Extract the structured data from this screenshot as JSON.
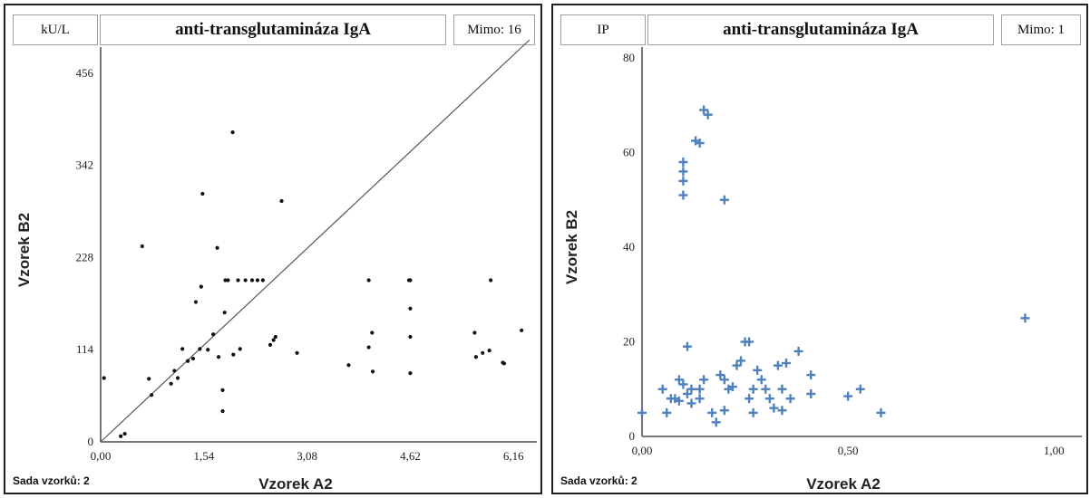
{
  "charts": [
    {
      "unit_label": "kU/L",
      "title": "anti-transglutamináza IgA",
      "out_of_range": "Mimo: 16",
      "footer": "Sada vzorků: 2",
      "xlabel": "Vzorek A2",
      "ylabel": "Vzorek B2"
    },
    {
      "unit_label": "IP",
      "title": "anti-transglutamináza IgA",
      "out_of_range": "Mimo: 1",
      "footer": "Sada vzorků: 2",
      "xlabel": "Vzorek A2",
      "ylabel": "Vzorek B2"
    }
  ],
  "chart_data": [
    {
      "type": "scatter",
      "title": "anti-transglutamináza IgA",
      "xlabel": "Vzorek A2",
      "ylabel": "Vzorek B2",
      "xlim": [
        0,
        6.4
      ],
      "ylim": [
        0,
        475
      ],
      "x_ticks": [
        "0,00",
        "1,54",
        "3,08",
        "4,62",
        "6,16"
      ],
      "x_tick_values": [
        0,
        1.54,
        3.08,
        4.62,
        6.16
      ],
      "y_ticks": [
        "0",
        "114",
        "228",
        "342",
        "456"
      ],
      "y_tick_values": [
        0,
        114,
        228,
        342,
        456
      ],
      "diagonal_line": true,
      "marker": "dot",
      "color": "#111111",
      "points": [
        [
          0.05,
          79
        ],
        [
          0.3,
          7
        ],
        [
          0.36,
          10
        ],
        [
          0.62,
          242
        ],
        [
          0.72,
          78
        ],
        [
          0.76,
          58
        ],
        [
          1.05,
          72
        ],
        [
          1.1,
          88
        ],
        [
          1.15,
          79
        ],
        [
          1.22,
          115
        ],
        [
          1.3,
          100
        ],
        [
          1.38,
          103
        ],
        [
          1.42,
          173
        ],
        [
          1.48,
          115
        ],
        [
          1.5,
          192
        ],
        [
          1.52,
          307
        ],
        [
          1.6,
          114
        ],
        [
          1.68,
          133
        ],
        [
          1.74,
          240
        ],
        [
          1.76,
          105
        ],
        [
          1.82,
          64
        ],
        [
          1.82,
          38
        ],
        [
          1.85,
          160
        ],
        [
          1.86,
          200
        ],
        [
          1.9,
          200
        ],
        [
          1.97,
          383
        ],
        [
          1.98,
          108
        ],
        [
          2.05,
          200
        ],
        [
          2.08,
          115
        ],
        [
          2.16,
          200
        ],
        [
          2.26,
          200
        ],
        [
          2.34,
          200
        ],
        [
          2.42,
          200
        ],
        [
          2.53,
          120
        ],
        [
          2.58,
          126
        ],
        [
          2.61,
          130
        ],
        [
          2.7,
          298
        ],
        [
          2.93,
          110
        ],
        [
          3.7,
          95
        ],
        [
          4.0,
          200
        ],
        [
          4.0,
          117
        ],
        [
          4.05,
          135
        ],
        [
          4.06,
          87
        ],
        [
          4.6,
          200
        ],
        [
          4.62,
          200
        ],
        [
          4.62,
          165
        ],
        [
          4.62,
          130
        ],
        [
          4.62,
          85
        ],
        [
          5.58,
          135
        ],
        [
          5.6,
          105
        ],
        [
          5.7,
          110
        ],
        [
          5.8,
          113
        ],
        [
          5.82,
          200
        ],
        [
          6.0,
          98
        ],
        [
          6.02,
          97
        ],
        [
          6.28,
          138
        ]
      ]
    },
    {
      "type": "scatter",
      "title": "anti-transglutamináza IgA",
      "xlabel": "Vzorek A2",
      "ylabel": "Vzorek B2",
      "xlim": [
        0,
        1.05
      ],
      "ylim": [
        0,
        80
      ],
      "x_ticks": [
        "0,00",
        "0,50",
        "1,00"
      ],
      "x_tick_values": [
        0,
        0.5,
        1.0
      ],
      "y_ticks": [
        "0",
        "20",
        "40",
        "60",
        "80"
      ],
      "y_tick_values": [
        0,
        20,
        40,
        60,
        80
      ],
      "diagonal_line": false,
      "marker": "plus",
      "color": "#4f81bd",
      "points": [
        [
          0.0,
          5
        ],
        [
          0.05,
          10
        ],
        [
          0.06,
          5
        ],
        [
          0.07,
          8
        ],
        [
          0.08,
          8
        ],
        [
          0.09,
          7.5
        ],
        [
          0.09,
          12
        ],
        [
          0.1,
          51
        ],
        [
          0.1,
          54
        ],
        [
          0.1,
          56
        ],
        [
          0.1,
          58
        ],
        [
          0.1,
          11
        ],
        [
          0.11,
          19
        ],
        [
          0.11,
          9
        ],
        [
          0.12,
          7
        ],
        [
          0.12,
          10
        ],
        [
          0.13,
          62.5
        ],
        [
          0.14,
          62
        ],
        [
          0.14,
          10
        ],
        [
          0.14,
          8
        ],
        [
          0.15,
          12
        ],
        [
          0.15,
          69
        ],
        [
          0.16,
          68
        ],
        [
          0.17,
          5
        ],
        [
          0.18,
          3
        ],
        [
          0.19,
          13
        ],
        [
          0.2,
          5.5
        ],
        [
          0.2,
          12
        ],
        [
          0.2,
          50
        ],
        [
          0.21,
          10
        ],
        [
          0.22,
          10.5
        ],
        [
          0.23,
          15
        ],
        [
          0.24,
          16
        ],
        [
          0.25,
          20
        ],
        [
          0.26,
          20
        ],
        [
          0.26,
          8
        ],
        [
          0.27,
          10
        ],
        [
          0.27,
          5
        ],
        [
          0.28,
          14
        ],
        [
          0.29,
          12
        ],
        [
          0.3,
          10
        ],
        [
          0.31,
          8
        ],
        [
          0.32,
          6
        ],
        [
          0.33,
          15
        ],
        [
          0.34,
          5.5
        ],
        [
          0.34,
          10
        ],
        [
          0.35,
          15.5
        ],
        [
          0.36,
          8
        ],
        [
          0.38,
          18
        ],
        [
          0.41,
          13
        ],
        [
          0.41,
          9
        ],
        [
          0.5,
          8.5
        ],
        [
          0.53,
          10
        ],
        [
          0.58,
          5
        ],
        [
          0.93,
          25
        ]
      ]
    }
  ]
}
